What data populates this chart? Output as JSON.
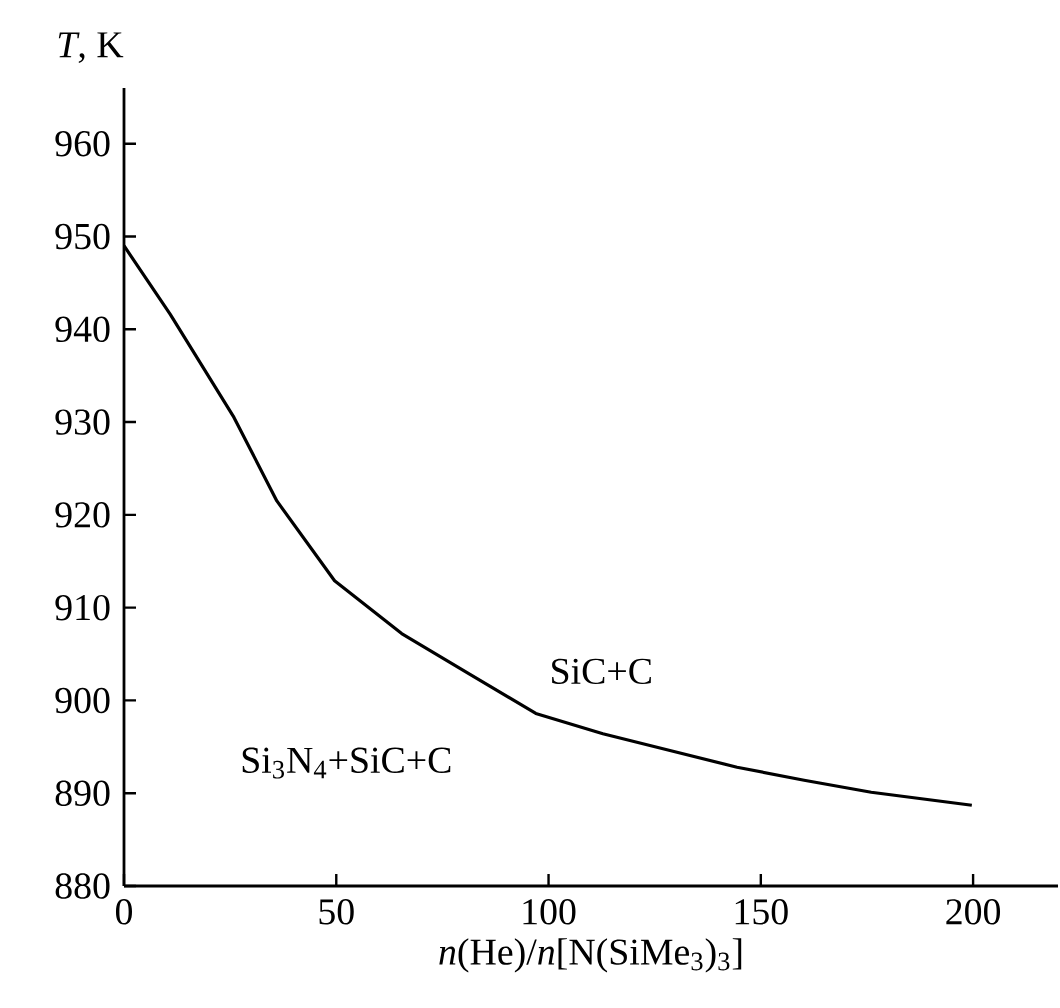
{
  "chart_data": {
    "type": "line",
    "xlabel": "*n*(He)/*n*[N(SiMe$_{3}$)$_{3}$]",
    "ylabel": "*T*, K",
    "x": [
      0,
      10.9,
      25.9,
      36,
      49.6,
      65.4,
      81.2,
      97,
      112.8,
      128.6,
      144.4,
      160.2,
      176,
      199.7
    ],
    "values": [
      949,
      941.6,
      930.5,
      921.5,
      912.9,
      907.2,
      902.9,
      898.6,
      896.4,
      894.6,
      892.8,
      891.4,
      890.1,
      888.7
    ],
    "color": "#000000",
    "xlim": [
      0,
      220
    ],
    "ylim": [
      880,
      966
    ],
    "xticks": [
      0,
      50,
      100,
      150,
      200
    ],
    "yticks": [
      880,
      890,
      900,
      910,
      920,
      930,
      940,
      950,
      960
    ],
    "annotations": [
      "SiC+C",
      "Si$_{3}$N$_{4}$+SiC+C"
    ]
  }
}
